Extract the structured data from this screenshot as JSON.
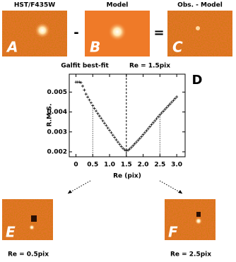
{
  "panels": {
    "top": [
      {
        "header": "HST/F435W",
        "letter": "A"
      },
      {
        "header": "Model",
        "letter": "B"
      },
      {
        "header": "Obs. - Model",
        "letter": "C"
      }
    ],
    "operators": [
      "-",
      "="
    ],
    "bottom": [
      {
        "letter": "E",
        "caption": "Re = 0.5pix"
      },
      {
        "letter": "F",
        "caption": "Re = 2.5pix"
      }
    ]
  },
  "chart_data": {
    "type": "scatter",
    "title": "Galfit best-fit",
    "annotation": "Re = 1.5pix",
    "panel_letter": "D",
    "x_label": "Re (pix)",
    "y_label": "R.M.S.",
    "marker": "+",
    "color": "#000000",
    "x": [
      0,
      0.05,
      0.1,
      0.15,
      0.2,
      0.25,
      0.3,
      0.35,
      0.4,
      0.45,
      0.5,
      0.55,
      0.6,
      0.65,
      0.7,
      0.75,
      0.8,
      0.85,
      0.9,
      0.95,
      1.0,
      1.05,
      1.1,
      1.15,
      1.2,
      1.25,
      1.3,
      1.35,
      1.4,
      1.45,
      1.5,
      1.55,
      1.6,
      1.65,
      1.7,
      1.75,
      1.8,
      1.85,
      1.9,
      1.95,
      2.0,
      2.05,
      2.1,
      2.15,
      2.2,
      2.25,
      2.3,
      2.35,
      2.4,
      2.45,
      2.5,
      2.55,
      2.6,
      2.65,
      2.7,
      2.75,
      2.8,
      2.85,
      2.9,
      2.95,
      3.0
    ],
    "values": [
      0.0055,
      0.0055,
      0.0055,
      0.00548,
      0.0053,
      0.0051,
      0.0049,
      0.00475,
      0.0046,
      0.00446,
      0.00432,
      0.00418,
      0.00405,
      0.00392,
      0.0038,
      0.00368,
      0.00356,
      0.00344,
      0.00332,
      0.0032,
      0.00308,
      0.00296,
      0.00284,
      0.00272,
      0.0026,
      0.00249,
      0.00238,
      0.00227,
      0.00217,
      0.0021,
      0.00206,
      0.00208,
      0.00214,
      0.00222,
      0.00231,
      0.0024,
      0.00249,
      0.00258,
      0.00267,
      0.00276,
      0.00286,
      0.00296,
      0.00306,
      0.00316,
      0.00326,
      0.00336,
      0.00346,
      0.00356,
      0.00366,
      0.00376,
      0.00386,
      0.00395,
      0.00404,
      0.00413,
      0.00422,
      0.00431,
      0.0044,
      0.00449,
      0.00458,
      0.00467,
      0.00476
    ],
    "best_fit_x": 1.5,
    "example_x": [
      0.5,
      2.5
    ],
    "xlim": [
      -0.2,
      3.25
    ],
    "ylim": [
      0.00175,
      0.0059
    ],
    "xticks": [
      0,
      0.5,
      {
        "value": 1,
        "label": "1.0"
      },
      1.5,
      {
        "value": 2,
        "label": "2.0"
      },
      2.5,
      {
        "value": 3,
        "label": "3.0"
      }
    ],
    "yticks": [
      0.002,
      0.003,
      0.004,
      0.005
    ]
  }
}
